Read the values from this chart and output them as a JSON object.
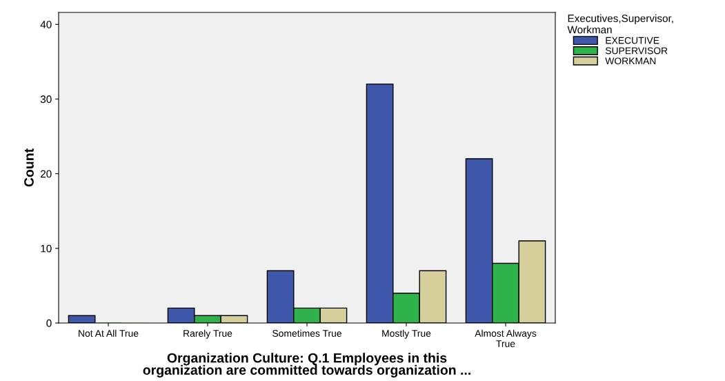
{
  "chart_data": {
    "type": "bar",
    "xlabel": "Organization Culture: Q.1 Employees in this\norganization are committed towards organization ...",
    "ylabel": "Count",
    "legend_title": "Executives,Supervisor,\nWorkman",
    "legend": "top right",
    "categories": [
      "Not At All True",
      "Rarely True",
      "Sometimes True",
      "Mostly True",
      "Almost Always\nTrue"
    ],
    "series": [
      {
        "name": "EXECUTIVE",
        "color": "#3f57aa",
        "values": [
          1,
          2,
          7,
          32,
          22
        ]
      },
      {
        "name": "SUPERVISOR",
        "color": "#2db34a",
        "values": [
          0,
          1,
          2,
          4,
          8
        ]
      },
      {
        "name": "WORKMAN",
        "color": "#d6cf9c",
        "values": [
          0,
          1,
          2,
          7,
          11
        ]
      }
    ],
    "ylim": [
      0,
      41.6
    ],
    "yticks": [
      0,
      10,
      20,
      30,
      40
    ],
    "grid": false
  }
}
